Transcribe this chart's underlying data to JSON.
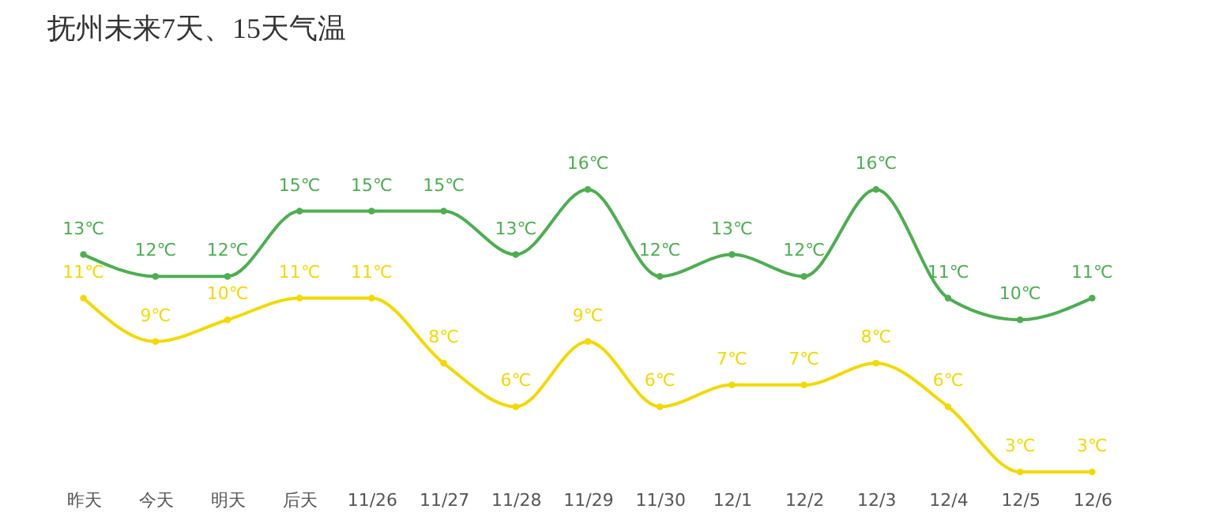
{
  "chart_data": {
    "type": "line",
    "title": "抚州未来7天、15天气温",
    "categories": [
      "昨天",
      "今天",
      "明天",
      "后天",
      "11/26",
      "11/27",
      "11/28",
      "11/29",
      "11/30",
      "12/1",
      "12/2",
      "12/3",
      "12/4",
      "12/5",
      "12/6"
    ],
    "series": [
      {
        "color": "#4caf50",
        "values": [
          13,
          12,
          12,
          15,
          15,
          15,
          13,
          16,
          12,
          13,
          12,
          16,
          11,
          10,
          11
        ],
        "value_labels": [
          "13℃",
          "12℃",
          "12℃",
          "15℃",
          "15℃",
          "15℃",
          "13℃",
          "16℃",
          "12℃",
          "13℃",
          "12℃",
          "16℃",
          "11℃",
          "10℃",
          "11℃"
        ]
      },
      {
        "color": "#f5d800",
        "values": [
          11,
          9,
          10,
          11,
          11,
          8,
          6,
          9,
          6,
          7,
          7,
          8,
          6,
          3,
          3
        ],
        "value_labels": [
          "11℃",
          "9℃",
          "10℃",
          "11℃",
          "11℃",
          "8℃",
          "6℃",
          "9℃",
          "6℃",
          "7℃",
          "7℃",
          "8℃",
          "6℃",
          "3℃",
          "3℃"
        ]
      }
    ],
    "legend": false,
    "grid": false,
    "marker": "circle",
    "line_style": "solid",
    "tick_labels": "x"
  }
}
